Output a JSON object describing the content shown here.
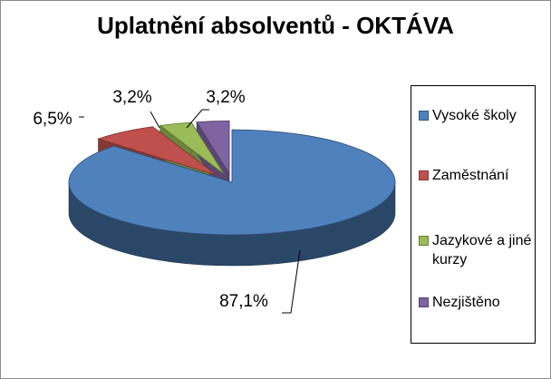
{
  "chart_data": {
    "type": "pie",
    "title": "Uplatnění absolventů - OKTÁVA",
    "categories": [
      "Vysoké školy",
      "Zaměstnání",
      "Jazykové a jiné kurzy",
      "Nezjištěno"
    ],
    "values": [
      87.1,
      6.5,
      3.2,
      3.2
    ],
    "data_labels": [
      "87,1%",
      "6,5%",
      "3,2%",
      "3,2%"
    ],
    "colors": [
      "#4f81bd",
      "#c0504d",
      "#9bbb59",
      "#8064a2"
    ],
    "exploded": true,
    "three_d": true,
    "legend_position": "right"
  }
}
